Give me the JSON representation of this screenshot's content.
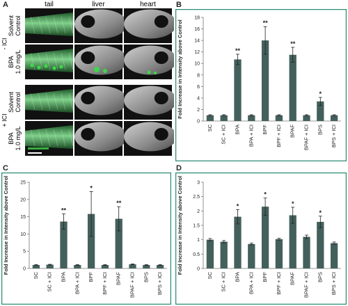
{
  "panel_letters": {
    "a": "A",
    "b": "B",
    "c": "C",
    "d": "D"
  },
  "micrograph": {
    "columns": [
      "tail",
      "liver",
      "heart"
    ],
    "groups": [
      {
        "label": "- ICI",
        "rows": [
          {
            "line1": "Solvent",
            "line2": "Control",
            "fluorescence": "none"
          },
          {
            "line1": "BPA",
            "line2": "1.0 mg/L",
            "fluorescence": "high"
          }
        ]
      },
      {
        "label": "+ ICI",
        "rows": [
          {
            "line1": "Solvent",
            "line2": "Control",
            "fluorescence": "none"
          },
          {
            "line1": "BPA",
            "line2": "1.0 mg/L",
            "fluorescence": "low"
          }
        ]
      }
    ],
    "colors": {
      "tail_green": "#2fa34a",
      "fluor_green": "#3ed64a",
      "tissue_gray": "#8a8a8a",
      "frame": "#111111"
    }
  },
  "chart_data": [
    {
      "id": "B",
      "type": "bar",
      "ylabel": "Fold Increase in Intensity above Control",
      "categories": [
        "SC",
        "SC + ICI",
        "BPA",
        "BPA + ICI",
        "BPF",
        "BPF + ICI",
        "BPAF",
        "BPAF + ICI",
        "BPS",
        "BPS + ICI"
      ],
      "values": [
        1.0,
        1.0,
        10.7,
        1.0,
        14.0,
        1.0,
        11.5,
        1.0,
        3.4,
        1.0
      ],
      "errors": [
        0.1,
        0.1,
        0.9,
        0.1,
        2.4,
        0.1,
        1.3,
        0.1,
        0.7,
        0.1
      ],
      "significance": [
        "",
        "",
        "**",
        "",
        "**",
        "",
        "**",
        "",
        "*",
        ""
      ],
      "ylim": [
        0,
        18
      ],
      "yticks": [
        0,
        2,
        4,
        6,
        8,
        10,
        12,
        14,
        16,
        18
      ],
      "bar_color": "#44605c",
      "border_color": "#2e8b77"
    },
    {
      "id": "C",
      "type": "bar",
      "ylabel": "Fold Increase in Intensity above Control",
      "categories": [
        "SC",
        "SC + ICI",
        "BPA",
        "BPA + ICI",
        "BPF",
        "BPF + ICI",
        "BPAF",
        "BPAF + ICI",
        "BPS",
        "BPS + ICI"
      ],
      "values": [
        1.0,
        1.1,
        13.6,
        1.0,
        15.8,
        1.0,
        14.4,
        1.2,
        1.0,
        1.0
      ],
      "errors": [
        0.1,
        0.1,
        2.2,
        0.1,
        6.5,
        0.1,
        3.5,
        0.1,
        0.1,
        0.1
      ],
      "significance": [
        "",
        "",
        "**",
        "",
        "*",
        "",
        "**",
        "",
        "",
        ""
      ],
      "ylim": [
        0,
        25
      ],
      "yticks": [
        0,
        5,
        10,
        15,
        20,
        25
      ],
      "bar_color": "#44605c",
      "border_color": "#2e8b77"
    },
    {
      "id": "D",
      "type": "bar",
      "ylabel": "Fold Increase in Intensity above Control",
      "categories": [
        "SC",
        "SC + ICI",
        "BPA",
        "BPA + ICI",
        "BPF",
        "BPF + ICI",
        "BPAF",
        "BPAF + ICI",
        "BPS",
        "BPS + ICI"
      ],
      "values": [
        1.0,
        0.93,
        1.8,
        0.85,
        2.15,
        1.02,
        1.85,
        1.1,
        1.62,
        0.88
      ],
      "errors": [
        0.04,
        0.04,
        0.25,
        0.03,
        0.3,
        0.03,
        0.28,
        0.06,
        0.2,
        0.04
      ],
      "significance": [
        "",
        "",
        "*",
        "",
        "*",
        "",
        "*",
        "",
        "*",
        ""
      ],
      "ylim": [
        0,
        3
      ],
      "yticks": [
        0,
        0.5,
        1,
        1.5,
        2,
        2.5,
        3
      ],
      "bar_color": "#44605c",
      "border_color": "#2e8b77"
    }
  ]
}
